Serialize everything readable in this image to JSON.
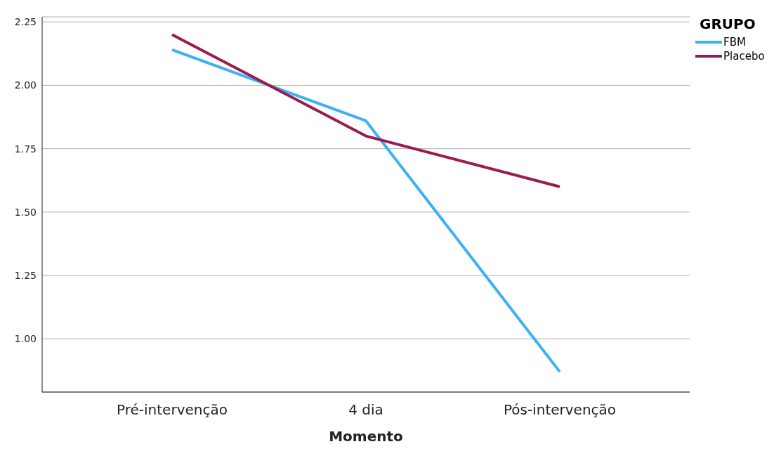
{
  "chart_data": {
    "type": "line",
    "xlabel": "Momento",
    "legend_title": "GRUPO",
    "legend": "top right",
    "grid": "y",
    "marker": "none",
    "line_style": "solid",
    "categories": [
      "Pré-intervenção",
      "4 dia",
      "Pós-intervenção"
    ],
    "ylim": [
      0.79,
      2.27
    ],
    "yticks": [
      {
        "value": 1,
        "label": "1.00"
      },
      {
        "value": 1.25,
        "label": "1.25"
      },
      {
        "value": 1.5,
        "label": "1.50"
      },
      {
        "value": 1.75,
        "label": "1.75"
      },
      {
        "value": 2,
        "label": "2.00"
      },
      {
        "value": 2.25,
        "label": "2.25"
      }
    ],
    "series": [
      {
        "name": "FBM",
        "color": "#3db1f5",
        "values": [
          2.14,
          1.86,
          0.87
        ]
      },
      {
        "name": "Placebo",
        "color": "#9b1b4e",
        "values": [
          2.2,
          1.8,
          1.6
        ]
      }
    ]
  }
}
